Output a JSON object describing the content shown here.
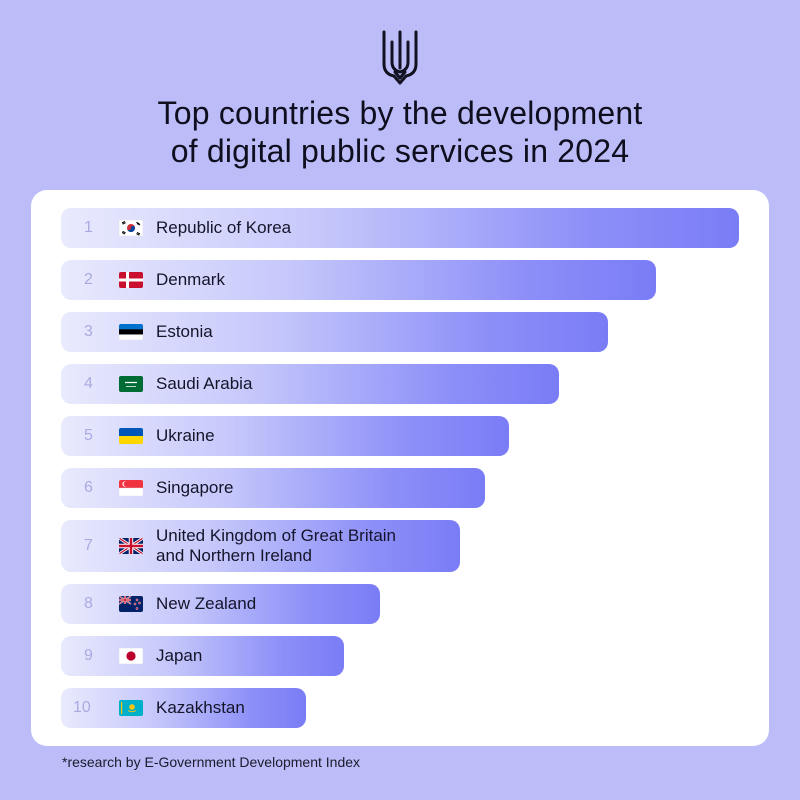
{
  "title": {
    "line1": "Top countries by the development",
    "line2": "of digital public services in 2024"
  },
  "emblem_icon": "trident-icon",
  "footnote": "*research by E-Government Development Index",
  "chart_data": {
    "type": "bar",
    "orientation": "horizontal",
    "title": "Top countries by the development of digital public services in 2024",
    "categories": [
      "Republic of Korea",
      "Denmark",
      "Estonia",
      "Saudi Arabia",
      "Ukraine",
      "Singapore",
      "United Kingdom of Great Britain and Northern Ireland",
      "New Zealand",
      "Japan",
      "Kazakhstan"
    ],
    "ranks": [
      1,
      2,
      3,
      4,
      5,
      6,
      7,
      8,
      9,
      10
    ],
    "values": [
      1.0,
      0.877,
      0.807,
      0.734,
      0.661,
      0.625,
      0.589,
      0.471,
      0.417,
      0.361
    ],
    "value_unit": "relative bar length (fraction of top bar)",
    "flags": [
      "flag-kr",
      "flag-dk",
      "flag-ee",
      "flag-sa",
      "flag-ua",
      "flag-sg",
      "flag-gb",
      "flag-nz",
      "flag-jp",
      "flag-kz"
    ],
    "gradient_colors": [
      "#e9eafd",
      "#7a7cf6"
    ],
    "grid": false,
    "legend": "none"
  }
}
